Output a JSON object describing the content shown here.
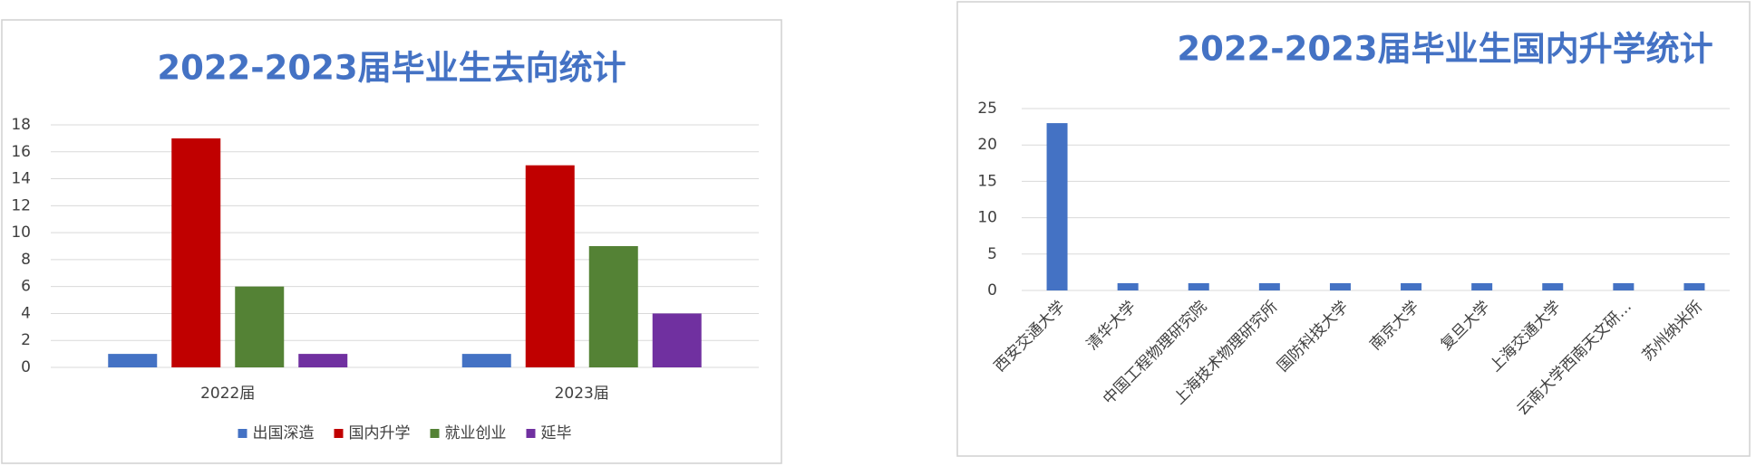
{
  "chart_data": [
    {
      "type": "bar",
      "title": "2022-2023届毕业生去向统计",
      "categories": [
        "2022届",
        "2023届"
      ],
      "series": [
        {
          "name": "出国深造",
          "color": "#4472c4",
          "values": [
            1,
            1
          ]
        },
        {
          "name": "国内升学",
          "color": "#c00000",
          "values": [
            17,
            15
          ]
        },
        {
          "name": "就业创业",
          "color": "#548235",
          "values": [
            6,
            9
          ]
        },
        {
          "name": "延毕",
          "color": "#7030a0",
          "values": [
            1,
            4
          ]
        }
      ],
      "ylim": [
        0,
        18
      ],
      "yticks": [
        0,
        2,
        4,
        6,
        8,
        10,
        12,
        14,
        16,
        18
      ],
      "grid": true,
      "legend": "bottom"
    },
    {
      "type": "bar",
      "title": "2022-2023届毕业生国内升学统计",
      "categories": [
        "西安交通大学",
        "清华大学",
        "中国工程物理研究院",
        "上海技术物理研究所",
        "国防科技大学",
        "南京大学",
        "复旦大学",
        "上海交通大学",
        "云南大学西南天文研…",
        "苏州纳米所"
      ],
      "values": [
        23,
        1,
        1,
        1,
        1,
        1,
        1,
        1,
        1,
        1
      ],
      "color": "#4472c4",
      "ylim": [
        0,
        25
      ],
      "yticks": [
        0,
        5,
        10,
        15,
        20,
        25
      ],
      "grid": true
    }
  ]
}
